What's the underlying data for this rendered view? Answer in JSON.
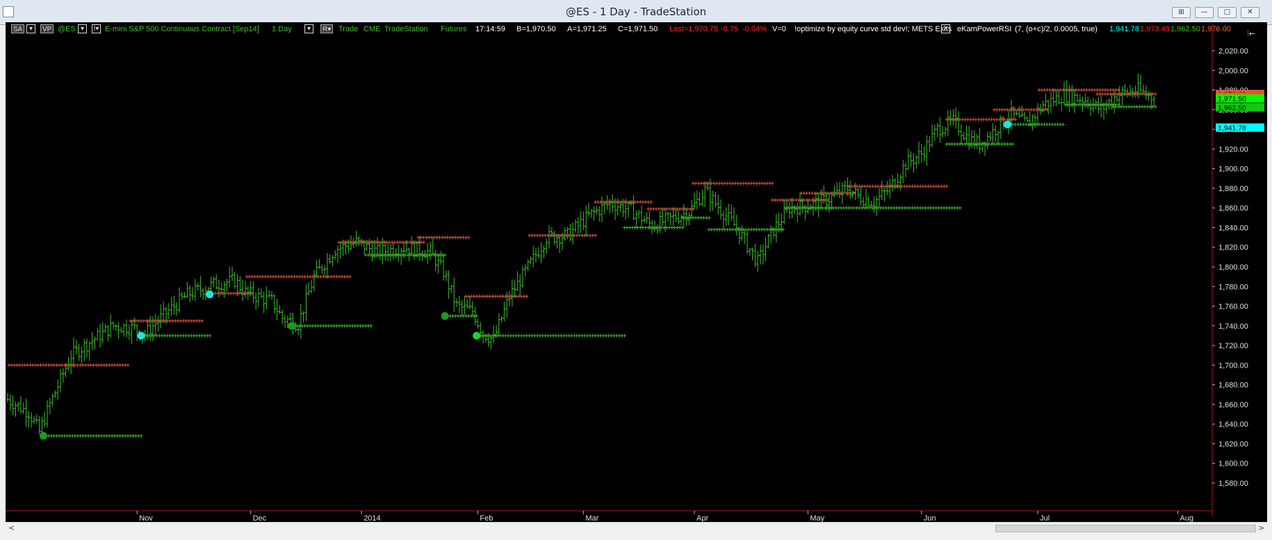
{
  "window": {
    "title": "@ES - 1 Day - TradeStation"
  },
  "status": {
    "sa_chip": "SA",
    "vp_chip": "VP",
    "symbol": "@ES",
    "description": "E-mini S&P 500 Continuous Contract [Sep14]",
    "interval": "1 Day",
    "r_chip": "R▾",
    "trade": "Trade",
    "exchange": "CME",
    "source": "TradeStation",
    "category": "Futures",
    "time": "17:14:59",
    "bid": "B=1,970.50",
    "ask": "A=1,971.25",
    "close": "C=1,971.50",
    "last": "Last=1,970.75",
    "net_change": "-0.75",
    "pct_change": "-0.04%",
    "volume": "V=0",
    "strategy": "!optimize by equity curve std dev!; METS Exits",
    "indicator": "eKamPowerRSI",
    "indicator_params": "(7,  (o+c)/2,  0.0005,  true)",
    "ind_val_1": "1,941.78",
    "ind_val_2": "1,973.49",
    "ind_val_3": "1,962.50",
    "ind_val_4": "1,976.00"
  },
  "colors": {
    "up": "#3fbf2c",
    "resist": "#e2543e",
    "support": "#3fbf2c",
    "marker": "#00e5e5",
    "grid_border": "#b01818"
  },
  "chart_data": {
    "type": "ohlc",
    "y_axis": {
      "min": 1575,
      "max": 2035,
      "ticks": [
        1580,
        1600,
        1620,
        1640,
        1660,
        1680,
        1700,
        1720,
        1740,
        1760,
        1780,
        1800,
        1820,
        1840,
        1860,
        1880,
        1900,
        1920,
        1940,
        1960,
        1980,
        2000,
        2020
      ]
    },
    "x_labels": [
      {
        "label": "Nov",
        "bar": 49
      },
      {
        "label": "Dec",
        "bar": 92
      },
      {
        "label": "2014",
        "bar": 134
      },
      {
        "label": "Feb",
        "bar": 178
      },
      {
        "label": "Mar",
        "bar": 218
      },
      {
        "label": "Apr",
        "bar": 260
      },
      {
        "label": "May",
        "bar": 303
      },
      {
        "label": "Jun",
        "bar": 346
      },
      {
        "label": "Jul",
        "bar": 390
      },
      {
        "label": "Aug",
        "bar": 443
      }
    ],
    "anchors": [
      [
        0,
        1665
      ],
      [
        8,
        1652
      ],
      [
        12,
        1632
      ],
      [
        16,
        1660
      ],
      [
        24,
        1710
      ],
      [
        40,
        1740
      ],
      [
        47,
        1738
      ],
      [
        52,
        1732
      ],
      [
        58,
        1748
      ],
      [
        68,
        1772
      ],
      [
        78,
        1782
      ],
      [
        86,
        1786
      ],
      [
        90,
        1774
      ],
      [
        100,
        1765
      ],
      [
        104,
        1748
      ],
      [
        110,
        1742
      ],
      [
        116,
        1790
      ],
      [
        124,
        1818
      ],
      [
        132,
        1825
      ],
      [
        140,
        1815
      ],
      [
        150,
        1820
      ],
      [
        160,
        1815
      ],
      [
        165,
        1795
      ],
      [
        170,
        1760
      ],
      [
        176,
        1755
      ],
      [
        180,
        1732
      ],
      [
        184,
        1726
      ],
      [
        190,
        1770
      ],
      [
        196,
        1795
      ],
      [
        204,
        1830
      ],
      [
        212,
        1832
      ],
      [
        220,
        1852
      ],
      [
        228,
        1865
      ],
      [
        236,
        1858
      ],
      [
        244,
        1842
      ],
      [
        252,
        1850
      ],
      [
        258,
        1856
      ],
      [
        264,
        1878
      ],
      [
        270,
        1858
      ],
      [
        276,
        1840
      ],
      [
        280,
        1822
      ],
      [
        284,
        1805
      ],
      [
        290,
        1838
      ],
      [
        296,
        1860
      ],
      [
        302,
        1862
      ],
      [
        310,
        1868
      ],
      [
        318,
        1880
      ],
      [
        322,
        1872
      ],
      [
        328,
        1866
      ],
      [
        334,
        1880
      ],
      [
        340,
        1905
      ],
      [
        346,
        1915
      ],
      [
        352,
        1940
      ],
      [
        358,
        1948
      ],
      [
        364,
        1930
      ],
      [
        368,
        1925
      ],
      [
        374,
        1940
      ],
      [
        380,
        1955
      ],
      [
        386,
        1945
      ],
      [
        392,
        1965
      ],
      [
        400,
        1975
      ],
      [
        408,
        1970
      ],
      [
        414,
        1960
      ],
      [
        420,
        1975
      ],
      [
        428,
        1980
      ],
      [
        434,
        1971.5
      ]
    ],
    "levels": [
      {
        "kind": "resistance",
        "price": 1700,
        "from": 0,
        "to": 45
      },
      {
        "kind": "support",
        "price": 1628,
        "from": 13,
        "to": 50
      },
      {
        "kind": "resistance",
        "price": 1745,
        "from": 46,
        "to": 73
      },
      {
        "kind": "support",
        "price": 1730,
        "from": 50,
        "to": 76
      },
      {
        "kind": "resistance",
        "price": 1773,
        "from": 76,
        "to": 92
      },
      {
        "kind": "resistance",
        "price": 1790,
        "from": 90,
        "to": 129
      },
      {
        "kind": "support",
        "price": 1740,
        "from": 107,
        "to": 137
      },
      {
        "kind": "resistance",
        "price": 1825,
        "from": 125,
        "to": 157
      },
      {
        "kind": "support",
        "price": 1812,
        "from": 135,
        "to": 165
      },
      {
        "kind": "resistance",
        "price": 1830,
        "from": 155,
        "to": 174
      },
      {
        "kind": "resistance",
        "price": 1770,
        "from": 173,
        "to": 196
      },
      {
        "kind": "support",
        "price": 1750,
        "from": 165,
        "to": 177
      },
      {
        "kind": "support",
        "price": 1730,
        "from": 177,
        "to": 233
      },
      {
        "kind": "resistance",
        "price": 1832,
        "from": 197,
        "to": 222
      },
      {
        "kind": "resistance",
        "price": 1866,
        "from": 222,
        "to": 243
      },
      {
        "kind": "support",
        "price": 1840,
        "from": 233,
        "to": 255
      },
      {
        "kind": "resistance",
        "price": 1859,
        "from": 242,
        "to": 259
      },
      {
        "kind": "resistance",
        "price": 1885,
        "from": 259,
        "to": 289
      },
      {
        "kind": "support",
        "price": 1850,
        "from": 255,
        "to": 265
      },
      {
        "kind": "support",
        "price": 1838,
        "from": 265,
        "to": 293
      },
      {
        "kind": "resistance",
        "price": 1868,
        "from": 289,
        "to": 310
      },
      {
        "kind": "support",
        "price": 1860,
        "from": 294,
        "to": 360
      },
      {
        "kind": "resistance",
        "price": 1875,
        "from": 300,
        "to": 320
      },
      {
        "kind": "resistance",
        "price": 1882,
        "from": 318,
        "to": 355
      },
      {
        "kind": "support",
        "price": 1925,
        "from": 355,
        "to": 380
      },
      {
        "kind": "resistance",
        "price": 1950,
        "from": 355,
        "to": 381
      },
      {
        "kind": "resistance",
        "price": 1960,
        "from": 373,
        "to": 393
      },
      {
        "kind": "support",
        "price": 1945,
        "from": 378,
        "to": 399
      },
      {
        "kind": "resistance",
        "price": 1980,
        "from": 390,
        "to": 420
      },
      {
        "kind": "support",
        "price": 1965,
        "from": 400,
        "to": 420
      },
      {
        "kind": "resistance",
        "price": 1976,
        "from": 412,
        "to": 434
      },
      {
        "kind": "support",
        "price": 1963,
        "from": 418,
        "to": 434
      }
    ],
    "markers": [
      {
        "bar": 13,
        "price": 1628,
        "color": "green"
      },
      {
        "bar": 50,
        "price": 1730,
        "color": "cyan"
      },
      {
        "bar": 76,
        "price": 1772,
        "color": "cyan"
      },
      {
        "bar": 107,
        "price": 1740,
        "color": "green"
      },
      {
        "bar": 165,
        "price": 1750,
        "color": "green"
      },
      {
        "bar": 177,
        "price": 1730,
        "color": "bright-green"
      },
      {
        "bar": 378,
        "price": 1945,
        "color": "cyan"
      }
    ],
    "price_labels": [
      {
        "text": "1,976.00",
        "price": 1976,
        "color": "#e2543e"
      },
      {
        "text": "1,973.49",
        "price": 1973.49,
        "color": "#ff4b20"
      },
      {
        "text": "1,971.50",
        "price": 1971.5,
        "color": "#00ff00"
      },
      {
        "text": "1,962.50",
        "price": 1962.5,
        "color": "#12c812"
      },
      {
        "text": "1,941.78",
        "price": 1941.78,
        "color": "#00ffff"
      }
    ]
  }
}
